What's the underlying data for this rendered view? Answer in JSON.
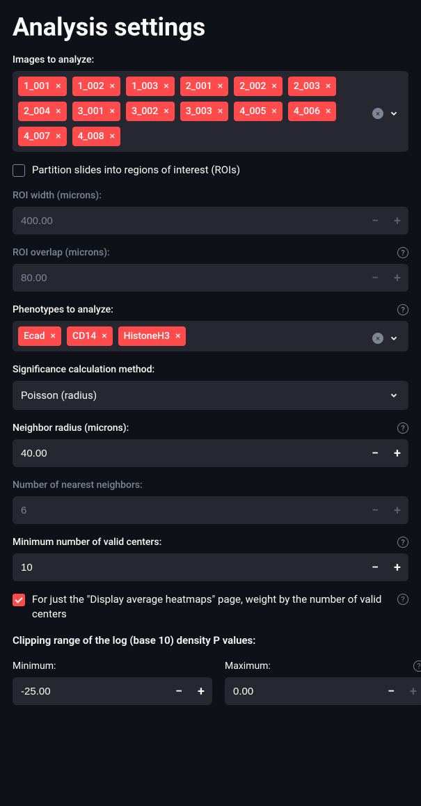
{
  "title": "Analysis settings",
  "images": {
    "label": "Images to analyze:",
    "tags": [
      "1_001",
      "1_002",
      "1_003",
      "2_001",
      "2_002",
      "2_003",
      "2_004",
      "3_001",
      "3_002",
      "3_003",
      "4_005",
      "4_006",
      "4_007",
      "4_008"
    ]
  },
  "partition": {
    "label": "Partition slides into regions of interest (ROIs)",
    "checked": false
  },
  "roi_width": {
    "label": "ROI width (microns):",
    "value": "400.00",
    "disabled": true
  },
  "roi_overlap": {
    "label": "ROI overlap (microns):",
    "value": "80.00",
    "disabled": true,
    "has_help": true
  },
  "phenotypes": {
    "label": "Phenotypes to analyze:",
    "tags": [
      "Ecad",
      "CD14",
      "HistoneH3"
    ],
    "has_help": true
  },
  "sig_method": {
    "label": "Significance calculation method:",
    "value": "Poisson (radius)"
  },
  "neighbor_radius": {
    "label": "Neighbor radius (microns):",
    "value": "40.00",
    "has_help": true
  },
  "nearest_neighbors": {
    "label": "Number of nearest neighbors:",
    "value": "6",
    "disabled": true
  },
  "min_valid_centers": {
    "label": "Minimum number of valid centers:",
    "value": "10",
    "has_help": true
  },
  "weight_checkbox": {
    "label": "For just the \"Display average heatmaps\" page, weight by the number of valid centers",
    "checked": true,
    "has_help": true
  },
  "clipping": {
    "label": "Clipping range of the log (base 10) density P values:",
    "min_label": "Minimum:",
    "min_value": "-25.00",
    "max_label": "Maximum:",
    "max_value": "0.00",
    "has_help": true
  },
  "colors": {
    "bg": "#0e1117",
    "panel": "#262730",
    "accent": "#ff4b4b",
    "text": "#fafafa",
    "muted": "#808495"
  }
}
